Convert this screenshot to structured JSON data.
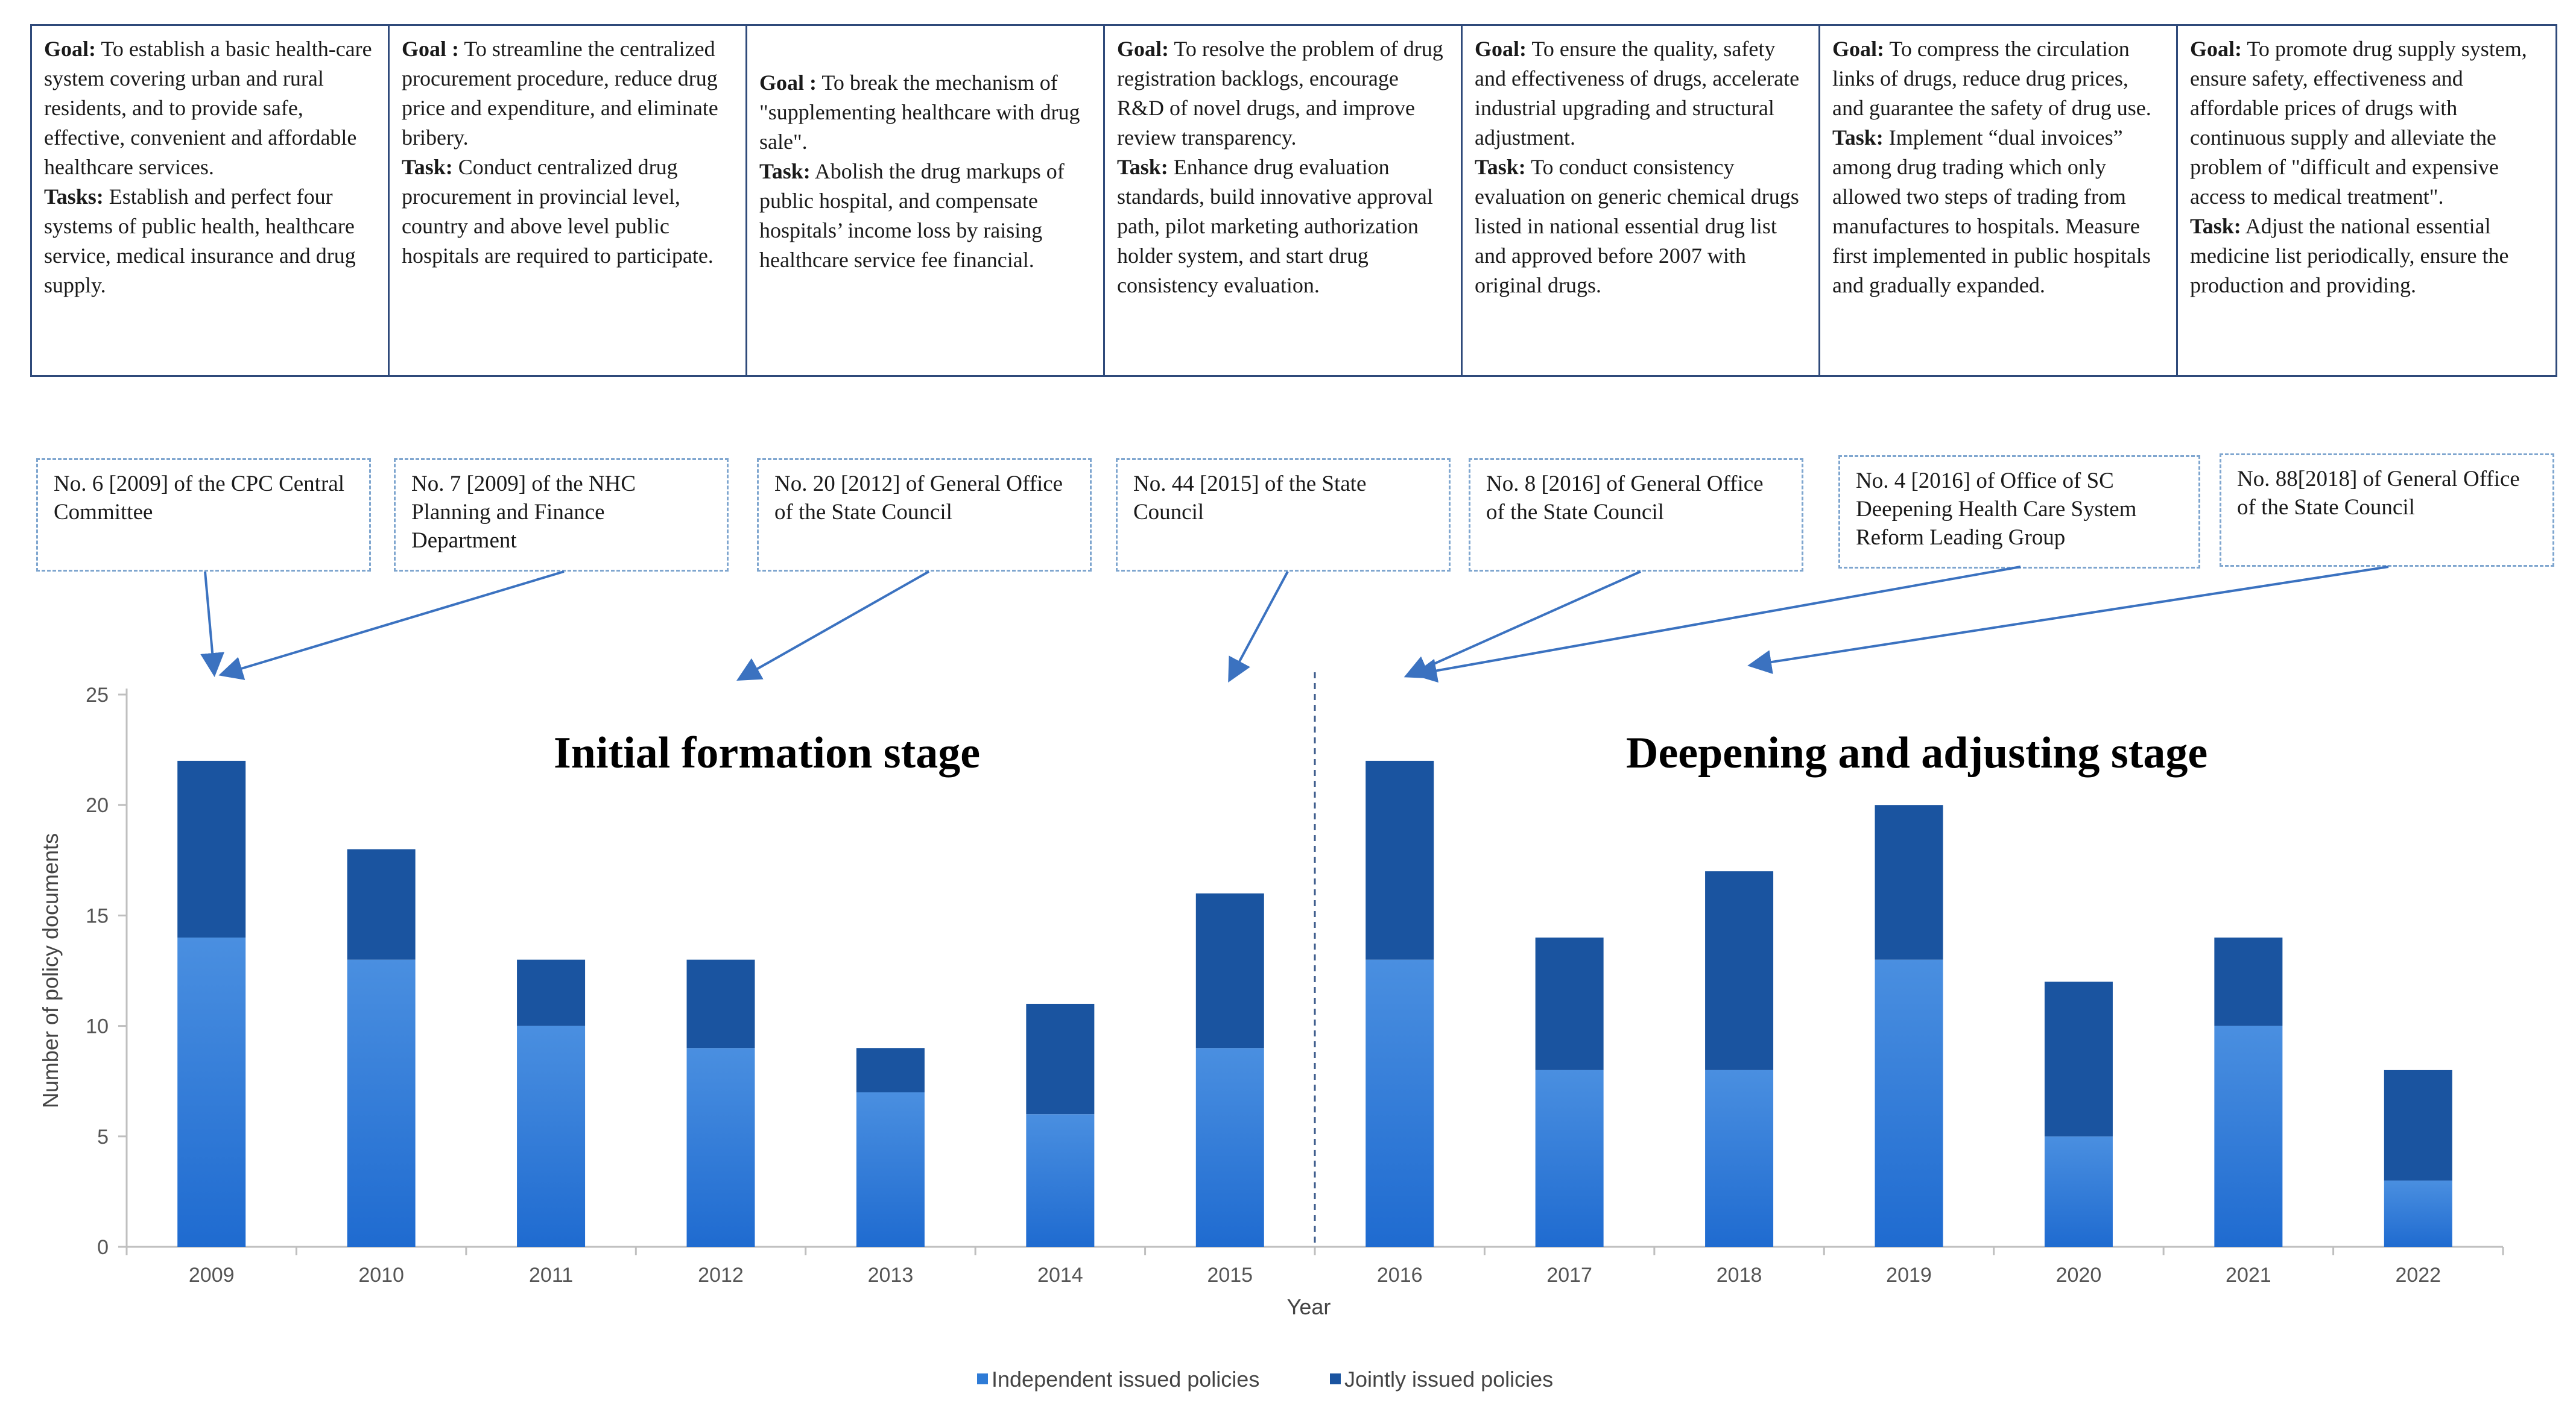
{
  "goal_boxes": [
    {
      "goal_label": "Goal:",
      "goal": " To establish a basic health-care system covering urban and rural residents, and to provide safe, effective, convenient and affordable healthcare services.",
      "task_label": "Tasks:",
      "task": " Establish and perfect four systems of public health, healthcare service, medical insurance and drug supply."
    },
    {
      "goal_label": "Goal :",
      "goal": " To streamline the centralized procurement procedure, reduce drug price and expenditure, and eliminate bribery.",
      "task_label": "Task:",
      "task": " Conduct centralized drug procurement in provincial level, country and above level public hospitals are required to participate."
    },
    {
      "goal_label": "Goal :",
      "goal": " To break the mechanism of \"supplementing healthcare with drug sale\".",
      "task_label": "Task:",
      "task": " Abolish the drug markups of public hospital, and compensate hospitals’ income loss by raising healthcare service fee financial."
    },
    {
      "goal_label": "Goal:",
      "goal": " To resolve the problem of drug registration backlogs, encourage R&D of novel drugs, and improve review transparency.",
      "task_label": "Task:",
      "task": " Enhance drug evaluation standards, build innovative approval path, pilot marketing authorization holder system, and start drug consistency evaluation."
    },
    {
      "goal_label": "Goal:",
      "goal": " To ensure the quality, safety and effectiveness of drugs, accelerate industrial upgrading and structural adjustment.",
      "task_label": "Task:",
      "task": " To conduct consistency evaluation on generic chemical drugs listed in national essential drug list and approved before 2007 with original drugs."
    },
    {
      "goal_label": "Goal:",
      "goal": " To compress the circulation links of drugs, reduce drug prices, and guarantee the safety of drug use.",
      "task_label": "Task:",
      "task": " Implement “dual invoices” among drug trading which only allowed two steps of trading from manufactures to hospitals. Measure first implemented in public hospitals and gradually expanded."
    },
    {
      "goal_label": "Goal:",
      "goal": " To promote drug supply system, ensure safety, effectiveness and affordable prices of drugs with continuous supply and alleviate the problem of \"difficult and expensive access to medical treatment\".",
      "task_label": "Task:",
      "task": " Adjust the national essential medicine list periodically, ensure the production and providing."
    }
  ],
  "doc_boxes": [
    "No. 6 [2009] of the CPC Central Committee",
    "No. 7 [2009] of the NHC Planning and Finance Department",
    "No. 20 [2012] of General Office of the State Council",
    "No. 44 [2015] of the State Council",
    "No. 8 [2016] of General Office of the State Council",
    "No. 4 [2016] of Office of SC Deepening Health Care System Reform Leading Group",
    "No. 88[2018] of General Office of the State Council"
  ],
  "stages": {
    "initial": "Initial formation stage",
    "deepening": "Deepening and adjusting stage"
  },
  "colors": {
    "independent": "#2e7bd6",
    "jointly": "#1a54a0",
    "box_border": "#2f4a7a",
    "doc_border": "#7fa6cf",
    "arrow": "#3b72c0"
  },
  "chart_data": {
    "type": "bar",
    "stacked": true,
    "categories": [
      "2009",
      "2010",
      "2011",
      "2012",
      "2013",
      "2014",
      "2015",
      "2016",
      "2017",
      "2018",
      "2019",
      "2020",
      "2021",
      "2022"
    ],
    "series": [
      {
        "name": "Independent issued policies",
        "values": [
          14,
          13,
          10,
          9,
          7,
          6,
          9,
          13,
          8,
          8,
          13,
          5,
          10,
          3
        ]
      },
      {
        "name": "Jointly issued policies",
        "values": [
          8,
          5,
          3,
          4,
          2,
          5,
          7,
          9,
          6,
          9,
          7,
          7,
          4,
          5
        ]
      }
    ],
    "xlabel": "Year",
    "ylabel": "Number of policy documents",
    "ylim": [
      0,
      25
    ],
    "yticks": [
      0,
      5,
      10,
      15,
      20,
      25
    ],
    "stage_divider_between": [
      "2015",
      "2016"
    ],
    "legend_position": "bottom"
  }
}
